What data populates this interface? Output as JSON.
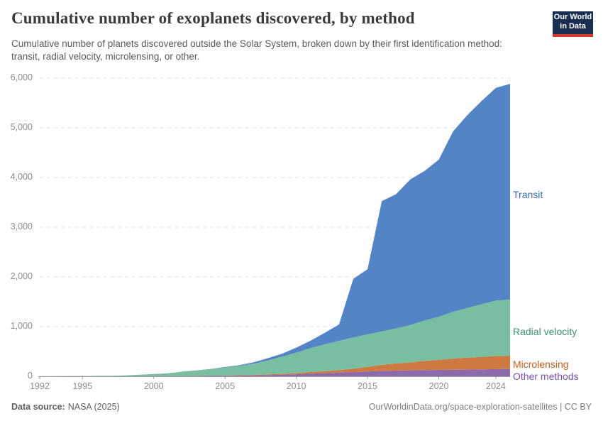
{
  "header": {
    "title": "Cumulative number of exoplanets discovered, by method",
    "subtitle": "Cumulative number of planets discovered outside the Solar System, broken down by their first identification method: transit, radial velocity, microlensing, or other.",
    "logo": {
      "line1": "Our World",
      "line2": "in Data"
    }
  },
  "chart_data": {
    "type": "area",
    "stacked": true,
    "title": "Cumulative number of exoplanets discovered, by method",
    "xlabel": "",
    "ylabel": "",
    "xlim": [
      1992,
      2025
    ],
    "ylim": [
      0,
      6000
    ],
    "grid": "horizontal-dashed",
    "legend_position": "inline-right",
    "x": [
      1992,
      1993,
      1994,
      1995,
      1996,
      1997,
      1998,
      1999,
      2000,
      2001,
      2002,
      2003,
      2004,
      2005,
      2006,
      2007,
      2008,
      2009,
      2010,
      2011,
      2012,
      2013,
      2014,
      2015,
      2016,
      2017,
      2018,
      2019,
      2020,
      2021,
      2022,
      2023,
      2024,
      2025
    ],
    "series": [
      {
        "name": "Other methods",
        "color": "#8D6AAE",
        "label_color": "#7C4FA9",
        "values": [
          2,
          2,
          3,
          3,
          3,
          3,
          3,
          4,
          4,
          5,
          5,
          6,
          8,
          11,
          13,
          17,
          25,
          33,
          41,
          53,
          62,
          73,
          85,
          96,
          108,
          115,
          120,
          125,
          128,
          132,
          135,
          140,
          145,
          147
        ]
      },
      {
        "name": "Microlensing",
        "color": "#CE7940",
        "label_color": "#C35E1D",
        "values": [
          0,
          0,
          0,
          0,
          0,
          0,
          0,
          0,
          0,
          0,
          1,
          2,
          3,
          4,
          8,
          12,
          14,
          16,
          21,
          33,
          43,
          50,
          66,
          94,
          122,
          145,
          158,
          186,
          200,
          225,
          240,
          250,
          263,
          268
        ]
      },
      {
        "name": "Radial velocity",
        "color": "#7ABEA1",
        "label_color": "#3C8E70",
        "values": [
          0,
          0,
          0,
          1,
          7,
          9,
          16,
          28,
          43,
          57,
          88,
          110,
          130,
          163,
          187,
          227,
          280,
          345,
          415,
          480,
          540,
          590,
          630,
          655,
          675,
          705,
          755,
          810,
          870,
          940,
          1000,
          1060,
          1115,
          1130
        ]
      },
      {
        "name": "Transit",
        "color": "#5385C6",
        "label_color": "#3D6CB4",
        "values": [
          0,
          0,
          0,
          0,
          0,
          0,
          0,
          0,
          0,
          0,
          1,
          2,
          6,
          9,
          15,
          25,
          46,
          60,
          100,
          150,
          230,
          330,
          1180,
          1310,
          2620,
          2700,
          2930,
          3010,
          3160,
          3630,
          3880,
          4090,
          4280,
          4340
        ]
      }
    ],
    "yticks": [
      {
        "value": 0,
        "label": "0"
      },
      {
        "value": 1000,
        "label": "1,000"
      },
      {
        "value": 2000,
        "label": "2,000"
      },
      {
        "value": 3000,
        "label": "3,000"
      },
      {
        "value": 4000,
        "label": "4,000"
      },
      {
        "value": 5000,
        "label": "5,000"
      },
      {
        "value": 6000,
        "label": "6,000"
      }
    ],
    "xticks": [
      {
        "value": 1992,
        "label": "1992"
      },
      {
        "value": 1995,
        "label": "1995"
      },
      {
        "value": 2000,
        "label": "2000"
      },
      {
        "value": 2005,
        "label": "2005"
      },
      {
        "value": 2010,
        "label": "2010"
      },
      {
        "value": 2015,
        "label": "2015"
      },
      {
        "value": 2020,
        "label": "2020"
      },
      {
        "value": 2024,
        "label": "2024"
      }
    ]
  },
  "footer": {
    "source_label": "Data source:",
    "source_value": "NASA (2025)",
    "credit": "OurWorldinData.org/space-exploration-satellites | CC BY"
  },
  "colors": {
    "logo_background": "#1A2E51",
    "logo_accent": "#D7352B",
    "gridline": "#dcdcdc",
    "axis": "#9a9a9a",
    "axis_text": "#8c8c8c"
  }
}
